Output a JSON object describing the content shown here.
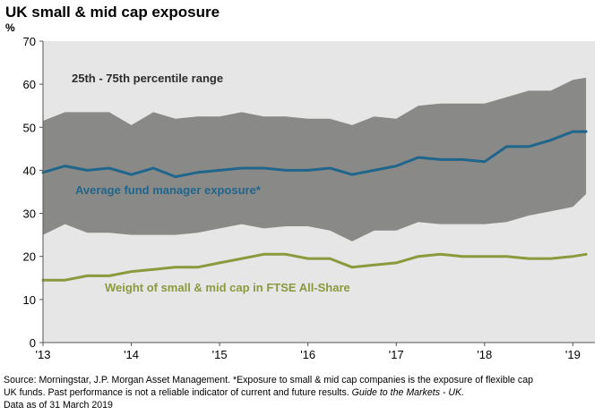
{
  "chart_data": {
    "type": "line",
    "title": "UK small & mid cap exposure",
    "ylabel": "%",
    "ylim": [
      0,
      70
    ],
    "yticks": [
      0,
      10,
      20,
      30,
      40,
      50,
      60,
      70
    ],
    "xlim": [
      2013.0,
      2019.25
    ],
    "xticks": [
      {
        "value": 2013,
        "label": "'13"
      },
      {
        "value": 2014,
        "label": "'14"
      },
      {
        "value": 2015,
        "label": "'15"
      },
      {
        "value": 2016,
        "label": "'16"
      },
      {
        "value": 2017,
        "label": "'17"
      },
      {
        "value": 2018,
        "label": "'18"
      },
      {
        "value": 2019,
        "label": "'19"
      }
    ],
    "x": [
      2013.0,
      2013.25,
      2013.5,
      2013.75,
      2014.0,
      2014.25,
      2014.5,
      2014.75,
      2015.0,
      2015.25,
      2015.5,
      2015.75,
      2016.0,
      2016.25,
      2016.5,
      2016.75,
      2017.0,
      2017.25,
      2017.5,
      2017.75,
      2018.0,
      2018.25,
      2018.5,
      2018.75,
      2019.0,
      2019.15
    ],
    "series": [
      {
        "name": "25th - 75th percentile range",
        "kind": "band",
        "color": "#898a87",
        "upper": [
          51.5,
          53.5,
          53.5,
          53.5,
          50.5,
          53.5,
          52.0,
          52.5,
          52.5,
          53.5,
          52.5,
          52.5,
          52.0,
          52.0,
          50.5,
          52.5,
          52.0,
          55.0,
          55.5,
          55.5,
          55.5,
          57.0,
          58.5,
          58.5,
          61.0,
          61.5
        ],
        "lower": [
          25.0,
          27.5,
          25.5,
          25.5,
          25.0,
          25.0,
          25.0,
          25.5,
          26.5,
          27.5,
          26.5,
          27.0,
          27.0,
          26.0,
          23.5,
          26.0,
          26.0,
          28.0,
          27.5,
          27.5,
          27.5,
          28.0,
          29.5,
          30.5,
          31.5,
          34.5
        ]
      },
      {
        "name": "Average fund manager exposure*",
        "color": "#20668c",
        "values": [
          39.5,
          41.0,
          40.0,
          40.5,
          39.0,
          40.5,
          38.5,
          39.5,
          40.0,
          40.5,
          40.5,
          40.0,
          40.0,
          40.5,
          39.0,
          40.0,
          41.0,
          43.0,
          42.5,
          42.5,
          42.0,
          45.5,
          45.5,
          47.0,
          49.0,
          49.0
        ]
      },
      {
        "name": "Weight of small & mid cap in FTSE All-Share",
        "color": "#8a9a3c",
        "values": [
          14.5,
          14.5,
          15.5,
          15.5,
          16.5,
          17.0,
          17.5,
          17.5,
          18.5,
          19.5,
          20.5,
          20.5,
          19.5,
          19.5,
          17.5,
          18.0,
          18.5,
          20.0,
          20.5,
          20.0,
          20.0,
          20.0,
          19.5,
          19.5,
          20.0,
          20.5
        ]
      }
    ],
    "annotations": {
      "band_label": "25th - 75th percentile range",
      "avg_label": "Average fund manager exposure*",
      "weight_label": "Weight of small & mid cap in FTSE All-Share"
    },
    "colors": {
      "plot_background": "#e6e6e6",
      "band": "#898a87",
      "avg_line": "#20668c",
      "weight_line": "#8a9a3c"
    }
  },
  "footnote": {
    "line1": "Source: Morningstar, J.P. Morgan Asset Management. *Exposure to small & mid cap companies is the exposure of flexible cap",
    "line2_plain": "UK funds. Past performance is not a reliable indicator of current and future results.",
    "line2_italic": "Guide to the Markets - UK.",
    "line3": "Data as of 31 March 2019"
  }
}
